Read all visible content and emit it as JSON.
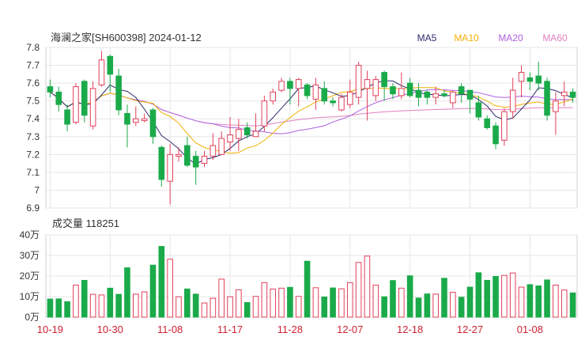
{
  "header": {
    "title": "海澜之家[SH600398] 2024-01-12",
    "ma_labels": [
      {
        "name": "MA5",
        "color": "#2b2b6b"
      },
      {
        "name": "MA10",
        "color": "#f0b000"
      },
      {
        "name": "MA20",
        "color": "#b060e0"
      },
      {
        "name": "MA60",
        "color": "#e080c0"
      }
    ]
  },
  "volume_label": "成交量 118251",
  "colors": {
    "up": "#e0405a",
    "down": "#1aaa4a",
    "grid": "#e6e6e6",
    "axis": "#333333",
    "xtick": "#cc2233"
  },
  "chart_data": [
    {
      "type": "candlestick",
      "ylim": [
        6.9,
        7.8
      ],
      "yticks": [
        "7.8",
        "7.7",
        "7.6",
        "7.5",
        "7.4",
        "7.3",
        "7.2",
        "7.1",
        "7",
        "6.9"
      ],
      "ytick_values": [
        7.8,
        7.7,
        7.6,
        7.5,
        7.4,
        7.3,
        7.2,
        7.1,
        7.0,
        6.9
      ],
      "xticks": [
        {
          "label": "10-19",
          "index": 0
        },
        {
          "label": "10-30",
          "index": 7
        },
        {
          "label": "11-08",
          "index": 14
        },
        {
          "label": "11-17",
          "index": 21
        },
        {
          "label": "11-28",
          "index": 28
        },
        {
          "label": "12-07",
          "index": 35
        },
        {
          "label": "12-18",
          "index": 42
        },
        {
          "label": "12-27",
          "index": 49
        },
        {
          "label": "01-08",
          "index": 56
        }
      ],
      "candles": [
        [
          7.58,
          7.55,
          7.62,
          7.52
        ],
        [
          7.55,
          7.48,
          7.58,
          7.44
        ],
        [
          7.45,
          7.37,
          7.48,
          7.33
        ],
        [
          7.38,
          7.58,
          7.6,
          7.37
        ],
        [
          7.61,
          7.42,
          7.62,
          7.38
        ],
        [
          7.36,
          7.57,
          7.61,
          7.34
        ],
        [
          7.59,
          7.73,
          7.78,
          7.58
        ],
        [
          7.75,
          7.65,
          7.76,
          7.55
        ],
        [
          7.64,
          7.45,
          7.68,
          7.42
        ],
        [
          7.43,
          7.37,
          7.48,
          7.24
        ],
        [
          7.38,
          7.4,
          7.47,
          7.36
        ],
        [
          7.39,
          7.4,
          7.43,
          7.38
        ],
        [
          7.45,
          7.3,
          7.46,
          7.26
        ],
        [
          7.24,
          7.06,
          7.25,
          7.02
        ],
        [
          7.05,
          7.2,
          7.26,
          6.92
        ],
        [
          7.19,
          7.2,
          7.24,
          7.16
        ],
        [
          7.25,
          7.14,
          7.3,
          7.13
        ],
        [
          7.19,
          7.13,
          7.22,
          7.03
        ],
        [
          7.15,
          7.19,
          7.22,
          7.13
        ],
        [
          7.19,
          7.25,
          7.32,
          7.17
        ],
        [
          7.2,
          7.29,
          7.33,
          7.22
        ],
        [
          7.27,
          7.31,
          7.41,
          7.22
        ],
        [
          7.29,
          7.34,
          7.4,
          7.22
        ],
        [
          7.35,
          7.31,
          7.38,
          7.29
        ],
        [
          7.3,
          7.33,
          7.43,
          7.32
        ],
        [
          7.36,
          7.5,
          7.53,
          7.33
        ],
        [
          7.5,
          7.55,
          7.57,
          7.48
        ],
        [
          7.56,
          7.61,
          7.63,
          7.55
        ],
        [
          7.61,
          7.57,
          7.63,
          7.48
        ],
        [
          7.57,
          7.62,
          7.63,
          7.47
        ],
        [
          7.59,
          7.53,
          7.6,
          7.51
        ],
        [
          7.51,
          7.59,
          7.63,
          7.45
        ],
        [
          7.57,
          7.5,
          7.61,
          7.48
        ],
        [
          7.5,
          7.49,
          7.52,
          7.47
        ],
        [
          7.45,
          7.52,
          7.54,
          7.44
        ],
        [
          7.48,
          7.55,
          7.62,
          7.46
        ],
        [
          7.52,
          7.7,
          7.72,
          7.48
        ],
        [
          7.57,
          7.62,
          7.67,
          7.39
        ],
        [
          7.53,
          7.62,
          7.64,
          7.5
        ],
        [
          7.66,
          7.58,
          7.67,
          7.5
        ],
        [
          7.58,
          7.54,
          7.6,
          7.51
        ],
        [
          7.53,
          7.57,
          7.66,
          7.51
        ],
        [
          7.6,
          7.53,
          7.63,
          7.52
        ],
        [
          7.56,
          7.52,
          7.6,
          7.47
        ],
        [
          7.55,
          7.52,
          7.56,
          7.48
        ],
        [
          7.52,
          7.54,
          7.58,
          7.48
        ],
        [
          7.54,
          7.53,
          7.56,
          7.52
        ],
        [
          7.49,
          7.55,
          7.56,
          7.46
        ],
        [
          7.58,
          7.54,
          7.6,
          7.49
        ],
        [
          7.56,
          7.51,
          7.56,
          7.43
        ],
        [
          7.49,
          7.41,
          7.53,
          7.39
        ],
        [
          7.4,
          7.35,
          7.42,
          7.34
        ],
        [
          7.36,
          7.26,
          7.38,
          7.23
        ],
        [
          7.28,
          7.44,
          7.46,
          7.25
        ],
        [
          7.44,
          7.56,
          7.63,
          7.4
        ],
        [
          7.61,
          7.66,
          7.7,
          7.52
        ],
        [
          7.63,
          7.61,
          7.66,
          7.56
        ],
        [
          7.64,
          7.6,
          7.72,
          7.56
        ],
        [
          7.61,
          7.42,
          7.63,
          7.39
        ],
        [
          7.44,
          7.5,
          7.55,
          7.31
        ],
        [
          7.53,
          7.55,
          7.61,
          7.47
        ],
        [
          7.55,
          7.52,
          7.57,
          7.49
        ]
      ]
    },
    {
      "type": "bar",
      "title": "成交量 118251",
      "ylim": [
        0,
        40
      ],
      "yticks": [
        "40万",
        "30万",
        "20万",
        "10万",
        "0万"
      ],
      "ytick_values": [
        40,
        30,
        20,
        10,
        0
      ],
      "volumes": [
        8.8,
        8.9,
        7.5,
        15.6,
        17.9,
        11.1,
        10.8,
        14.1,
        11.1,
        24,
        11.2,
        12.3,
        25.3,
        34.4,
        28.2,
        9.9,
        13.7,
        11.2,
        6.9,
        9.2,
        18.5,
        9.9,
        13.3,
        7.1,
        10.1,
        16.8,
        13.7,
        14.1,
        14.5,
        10.1,
        27.2,
        14.3,
        9.8,
        14.2,
        13.8,
        16.8,
        26.6,
        29.7,
        15.6,
        9.9,
        17.8,
        14.1,
        20.1,
        9.3,
        11.3,
        11.2,
        18.9,
        12.1,
        9.7,
        14.6,
        21.6,
        17.9,
        19.8,
        20.3,
        21.5,
        14.6,
        15.8,
        15.2,
        18.1,
        15.6,
        13.2,
        11.8
      ]
    }
  ]
}
